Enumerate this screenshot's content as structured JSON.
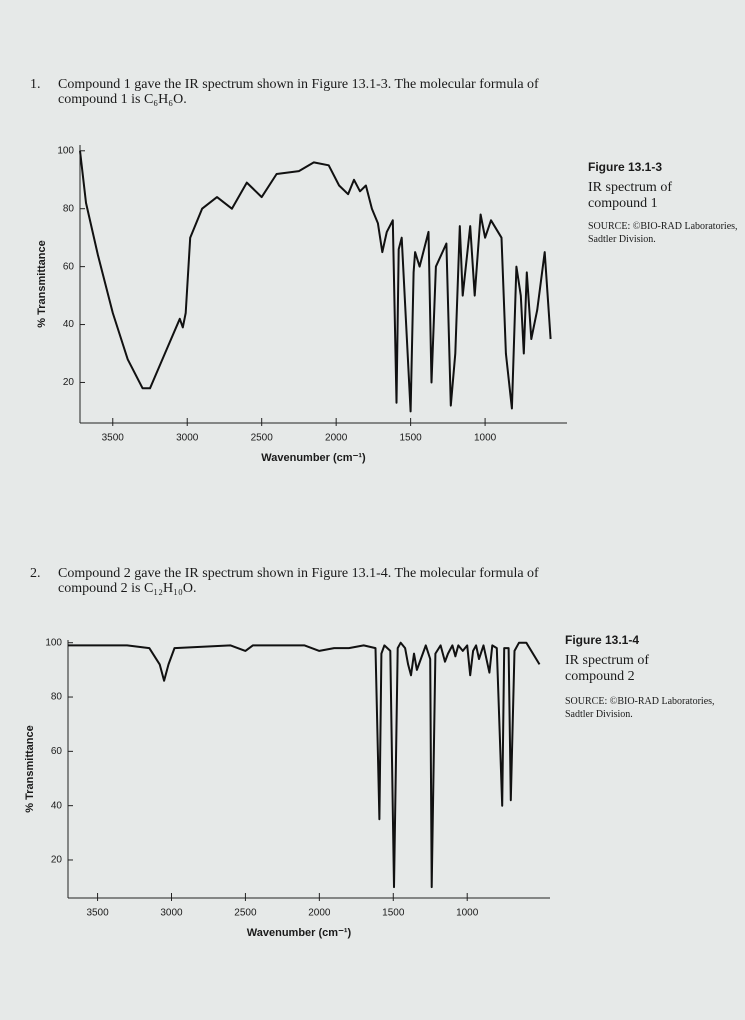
{
  "problems": [
    {
      "number": "1.",
      "text": "Compound 1 gave the IR spectrum shown in Figure 13.1-3. The molecular formula of compound 1 is C₆H₆O."
    },
    {
      "number": "2.",
      "text": "Compound 2 gave the IR spectrum shown in Figure 13.1-4. The molecular formula of compound 2 is C₁₂H₁₀O."
    }
  ],
  "chart_data": [
    {
      "type": "line",
      "title": "Figure 13.1-3",
      "subtitle": "IR spectrum of compound 1",
      "source": "SOURCE: ©BIO-RAD Laboratories, Sadtler Division.",
      "xlabel": "Wavenumber (cm⁻¹)",
      "ylabel": "% Transmittance",
      "color": "#111111",
      "xlim": [
        3720,
        450
      ],
      "ylim": [
        6,
        102
      ],
      "xticks": [
        3500,
        3000,
        2500,
        2000,
        1500,
        1000
      ],
      "yticks": [
        100,
        80,
        60,
        40,
        20
      ],
      "x": [
        3720,
        3680,
        3600,
        3500,
        3400,
        3300,
        3250,
        3150,
        3050,
        3030,
        3010,
        2980,
        2900,
        2800,
        2700,
        2600,
        2500,
        2400,
        2250,
        2150,
        2050,
        1980,
        1920,
        1880,
        1840,
        1800,
        1760,
        1720,
        1690,
        1660,
        1620,
        1595,
        1580,
        1560,
        1500,
        1480,
        1470,
        1440,
        1380,
        1360,
        1330,
        1260,
        1230,
        1200,
        1170,
        1150,
        1100,
        1070,
        1030,
        1000,
        960,
        890,
        860,
        820,
        790,
        760,
        740,
        720,
        690,
        650,
        600,
        560
      ],
      "values": [
        100,
        82,
        64,
        44,
        28,
        18,
        18,
        30,
        42,
        39,
        44,
        70,
        80,
        84,
        80,
        89,
        84,
        92,
        93,
        96,
        95,
        88,
        85,
        90,
        86,
        88,
        80,
        75,
        65,
        72,
        76,
        13,
        66,
        70,
        10,
        58,
        65,
        60,
        72,
        20,
        60,
        68,
        12,
        30,
        74,
        50,
        74,
        50,
        78,
        70,
        76,
        70,
        30,
        11,
        60,
        50,
        30,
        58,
        35,
        45,
        65,
        35
      ]
    },
    {
      "type": "line",
      "title": "Figure 13.1-4",
      "subtitle": "IR spectrum of compound 2",
      "source": "SOURCE: ©BIO-RAD Laboratories, Sadtler Division.",
      "xlabel": "Wavenumber (cm⁻¹)",
      "ylabel": "% Transmittance",
      "color": "#111111",
      "xlim": [
        3700,
        440
      ],
      "ylim": [
        6,
        101
      ],
      "xticks": [
        3500,
        3000,
        2500,
        2000,
        1500,
        1000
      ],
      "yticks": [
        100,
        80,
        60,
        40,
        20
      ],
      "x": [
        3700,
        3300,
        3150,
        3080,
        3050,
        3020,
        2980,
        2600,
        2500,
        2450,
        2100,
        2000,
        1900,
        1800,
        1700,
        1620,
        1594,
        1580,
        1560,
        1520,
        1495,
        1470,
        1450,
        1420,
        1400,
        1380,
        1360,
        1340,
        1300,
        1280,
        1250,
        1240,
        1215,
        1180,
        1150,
        1130,
        1100,
        1080,
        1060,
        1030,
        1000,
        980,
        960,
        940,
        920,
        890,
        850,
        830,
        800,
        763,
        750,
        720,
        705,
        680,
        650,
        600,
        511
      ],
      "values": [
        99,
        99,
        98,
        92,
        86,
        92,
        98,
        99,
        97,
        99,
        99,
        97,
        98,
        98,
        99,
        98,
        35,
        96,
        99,
        97,
        10,
        98,
        100,
        98,
        92,
        88,
        96,
        90,
        96,
        99,
        94,
        10,
        96,
        99,
        93,
        96,
        99,
        95,
        99,
        97,
        99,
        88,
        97,
        99,
        94,
        99,
        89,
        99,
        98,
        40,
        98,
        98,
        42,
        97,
        100,
        100,
        92
      ]
    }
  ]
}
